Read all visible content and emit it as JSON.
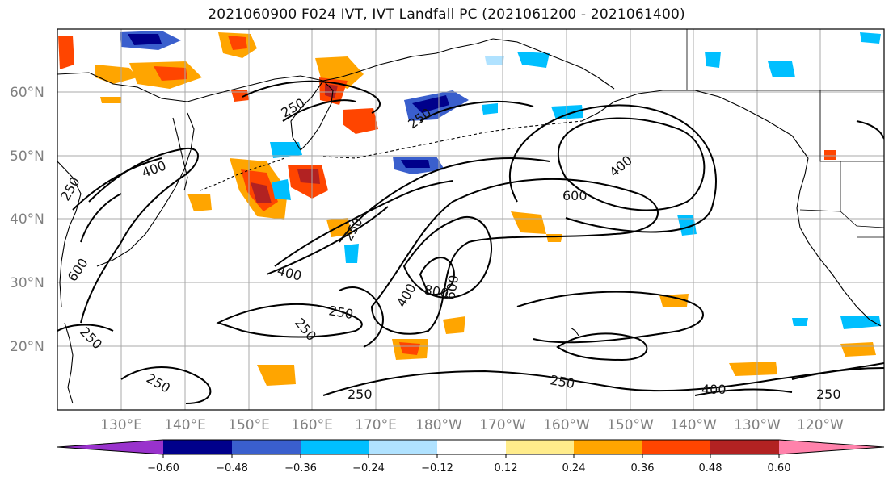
{
  "title": "2021060900 F024 IVT, IVT Landfall PC (2021061200 - 2021061400)",
  "map": {
    "lat_labels": [
      "60°N",
      "50°N",
      "40°N",
      "30°N",
      "20°N"
    ],
    "lon_labels": [
      "130°E",
      "140°E",
      "150°E",
      "160°E",
      "170°E",
      "180°W",
      "170°W",
      "160°W",
      "150°W",
      "140°W",
      "130°W",
      "120°W"
    ],
    "contour_labels": [
      "250",
      "250",
      "250",
      "250",
      "250",
      "250",
      "250",
      "250",
      "250",
      "250",
      "250",
      "400",
      "400",
      "400",
      "400",
      "400",
      "600",
      "600",
      "600",
      "800"
    ]
  },
  "colorbar": {
    "tick_labels": [
      "−0.60",
      "−0.48",
      "−0.36",
      "−0.24",
      "−0.12",
      "0.12",
      "0.24",
      "0.36",
      "0.48",
      "0.60"
    ],
    "colors": [
      "#9932cc",
      "#00008b",
      "#3a5fcd",
      "#00bfff",
      "#b0e2ff",
      "#ffffff",
      "#ffec8b",
      "#ffa500",
      "#ff4500",
      "#b22222",
      "#ff82ab"
    ]
  },
  "colors": {
    "contour": "#000000",
    "coast": "#000000",
    "grid": "#a9a9a9"
  }
}
